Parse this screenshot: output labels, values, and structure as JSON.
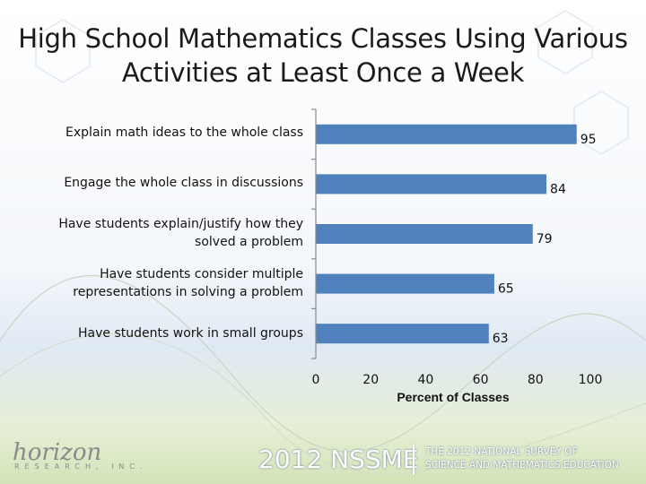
{
  "title": "High School Mathematics Classes Using Various Activities at Least Once a Week",
  "chart_data": {
    "type": "bar",
    "orientation": "horizontal",
    "categories": [
      "Explain math ideas to the whole class",
      "Engage the whole class in discussions",
      "Have students explain/justify how they solved a problem",
      "Have students consider multiple representations in solving a problem",
      "Have students work in small groups"
    ],
    "values": [
      95,
      84,
      79,
      65,
      63
    ],
    "xlabel": "Percent of Classes",
    "ylabel": "",
    "xlim": [
      0,
      100
    ],
    "xticks": [
      "0",
      "20",
      "40",
      "60",
      "80",
      "100"
    ],
    "grid": false,
    "bar_color": "#4f81bd"
  },
  "footer": {
    "logo": "horizon",
    "logo_sub": "RESEARCH, INC.",
    "survey": "2012 NSSME",
    "tagline_1": "THE 2012 NATIONAL SURVEY OF",
    "tagline_2": "SCIENCE AND MATHEMATICS EDUCATION"
  }
}
